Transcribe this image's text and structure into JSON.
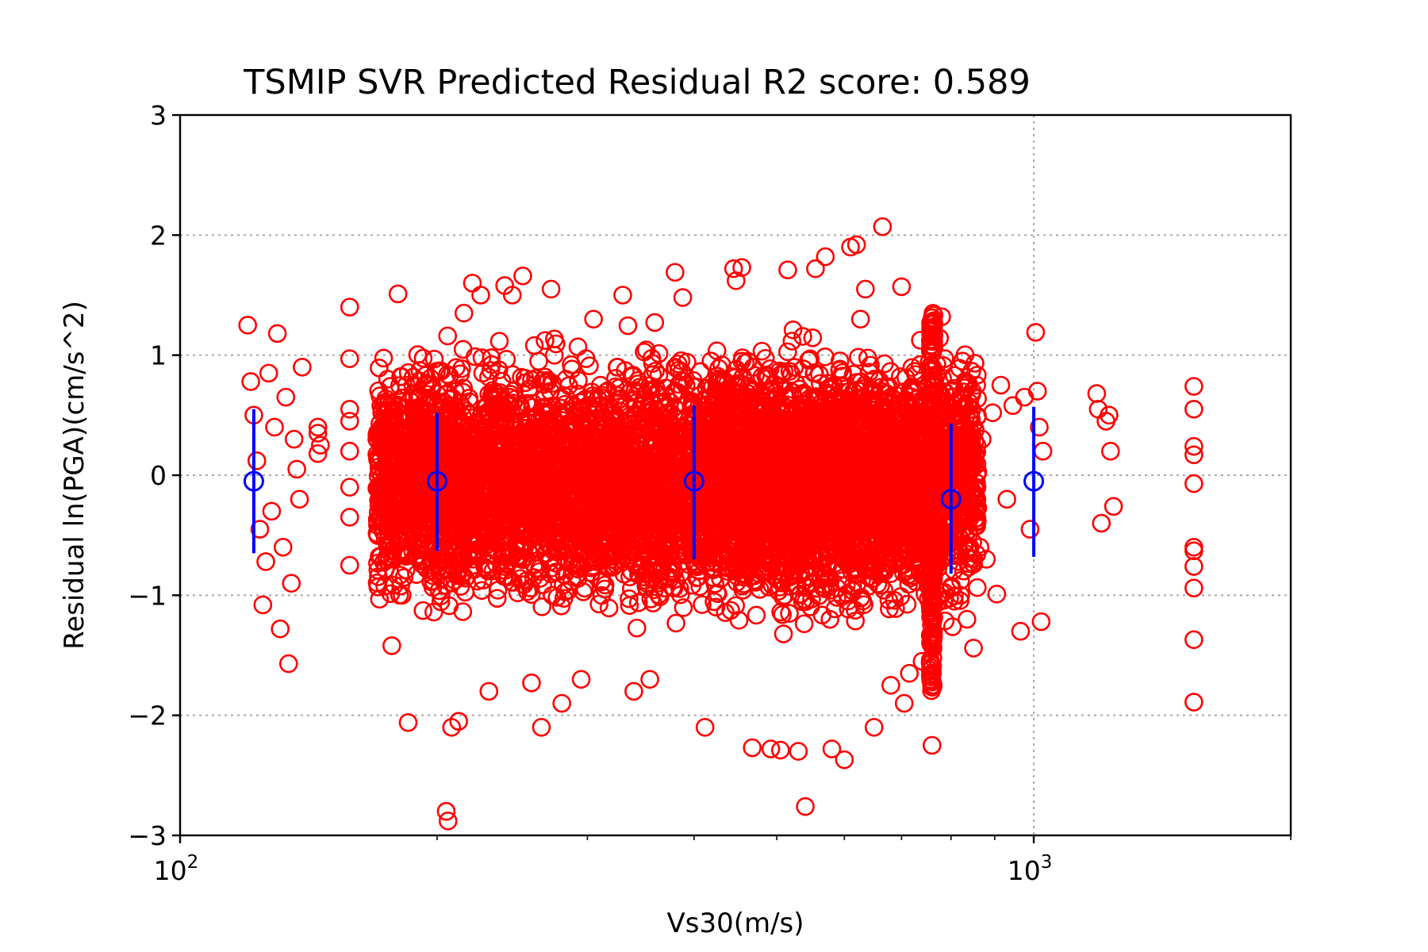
{
  "chart_data": {
    "type": "scatter",
    "title": "TSMIP SVR Predicted Residual R2 score: 0.589",
    "xlabel": "Vs30(m/s)",
    "ylabel": "Residual ln(PGA)(cm/s^2)",
    "xscale": "log",
    "xlim": [
      100,
      2000
    ],
    "ylim": [
      -3,
      3
    ],
    "x_ticks": [
      {
        "value": 100,
        "base": "10",
        "exp": "2"
      },
      {
        "value": 1000,
        "base": "10",
        "exp": "3"
      }
    ],
    "y_ticks": [
      {
        "value": -3,
        "label": "−3"
      },
      {
        "value": -2,
        "label": "−2"
      },
      {
        "value": -1,
        "label": "−1"
      },
      {
        "value": 0,
        "label": "0"
      },
      {
        "value": 1,
        "label": "1"
      },
      {
        "value": 2,
        "label": "2"
      },
      {
        "value": 3,
        "label": "3"
      }
    ],
    "grid": true,
    "colors": {
      "points": "#ff0000",
      "summary": "#0000ff"
    },
    "series": [
      {
        "marker": "open-circle",
        "color": "#ff0000",
        "points": [
          [
            120,
            1.25
          ],
          [
            121,
            0.78
          ],
          [
            122,
            0.5
          ],
          [
            123,
            0.12
          ],
          [
            124,
            -0.45
          ],
          [
            125,
            -1.08
          ],
          [
            126,
            -0.72
          ],
          [
            127,
            0.85
          ],
          [
            128,
            -0.3
          ],
          [
            129,
            0.4
          ],
          [
            130,
            1.18
          ],
          [
            131,
            -1.28
          ],
          [
            132,
            -0.6
          ],
          [
            133,
            0.65
          ],
          [
            134,
            -1.57
          ],
          [
            135,
            -0.9
          ],
          [
            136,
            0.3
          ],
          [
            137,
            0.05
          ],
          [
            138,
            -0.2
          ],
          [
            139,
            0.9
          ],
          [
            145,
            0.35
          ],
          [
            145,
            0.18
          ],
          [
            145,
            0.4
          ],
          [
            146,
            0.25
          ],
          [
            158,
            1.4
          ],
          [
            158,
            0.97
          ],
          [
            158,
            0.55
          ],
          [
            158,
            0.45
          ],
          [
            158,
            0.2
          ],
          [
            158,
            -0.1
          ],
          [
            158,
            -0.35
          ],
          [
            158,
            -0.75
          ],
          [
            170,
            0.3
          ],
          [
            173,
            -0.2
          ],
          [
            175,
            0.8
          ],
          [
            177,
            -1.42
          ],
          [
            180,
            1.51
          ],
          [
            182,
            -1.0
          ],
          [
            185,
            -2.06
          ],
          [
            188,
            0.5
          ],
          [
            205,
            -2.8
          ],
          [
            206,
            -2.88
          ],
          [
            208,
            -2.1
          ],
          [
            212,
            -2.05
          ],
          [
            215,
            1.35
          ],
          [
            220,
            1.6
          ],
          [
            225,
            1.5
          ],
          [
            230,
            -1.8
          ],
          [
            240,
            1.58
          ],
          [
            245,
            1.5
          ],
          [
            252,
            1.66
          ],
          [
            258,
            -1.73
          ],
          [
            265,
            -2.1
          ],
          [
            272,
            1.55
          ],
          [
            280,
            -1.9
          ],
          [
            295,
            -1.7
          ],
          [
            305,
            1.3
          ],
          [
            330,
            1.5
          ],
          [
            340,
            -1.8
          ],
          [
            355,
            -1.7
          ],
          [
            380,
            1.69
          ],
          [
            388,
            1.48
          ],
          [
            412,
            -2.1
          ],
          [
            445,
            1.72
          ],
          [
            448,
            1.62
          ],
          [
            455,
            1.73
          ],
          [
            468,
            -2.27
          ],
          [
            492,
            -2.28
          ],
          [
            505,
            -2.29
          ],
          [
            515,
            1.71
          ],
          [
            530,
            -2.3
          ],
          [
            540,
            -2.76
          ],
          [
            555,
            1.72
          ],
          [
            570,
            1.82
          ],
          [
            580,
            -2.28
          ],
          [
            600,
            -2.37
          ],
          [
            610,
            1.9
          ],
          [
            620,
            1.92
          ],
          [
            635,
            1.55
          ],
          [
            650,
            -2.1
          ],
          [
            665,
            2.07
          ],
          [
            680,
            -1.75
          ],
          [
            700,
            1.57
          ],
          [
            705,
            -1.9
          ],
          [
            715,
            -1.65
          ],
          [
            740,
            -1.55
          ],
          [
            760,
            -2.25
          ],
          [
            780,
            1.32
          ],
          [
            825,
            0.95
          ],
          [
            835,
            -1.2
          ],
          [
            850,
            -1.44
          ],
          [
            865,
            -0.6
          ],
          [
            870,
            0.3
          ],
          [
            880,
            -0.7
          ],
          [
            895,
            0.52
          ],
          [
            905,
            -0.99
          ],
          [
            915,
            0.75
          ],
          [
            930,
            -0.2
          ],
          [
            945,
            0.58
          ],
          [
            965,
            -1.3
          ],
          [
            975,
            0.65
          ],
          [
            990,
            -0.45
          ],
          [
            1005,
            1.19
          ],
          [
            1010,
            0.7
          ],
          [
            1015,
            0.4
          ],
          [
            1020,
            -1.22
          ],
          [
            1025,
            0.2
          ],
          [
            1185,
            0.68
          ],
          [
            1190,
            0.55
          ],
          [
            1200,
            -0.4
          ],
          [
            1215,
            0.45
          ],
          [
            1225,
            0.5
          ],
          [
            1230,
            0.2
          ],
          [
            1240,
            -0.26
          ],
          [
            1540,
            0.74
          ],
          [
            1540,
            0.55
          ],
          [
            1540,
            0.24
          ],
          [
            1540,
            0.17
          ],
          [
            1540,
            -0.07
          ],
          [
            1540,
            -0.6
          ],
          [
            1540,
            -0.63
          ],
          [
            1540,
            -0.76
          ],
          [
            1540,
            -0.94
          ],
          [
            1540,
            -1.37
          ],
          [
            1540,
            -1.89
          ]
        ]
      },
      {
        "marker": "open-circle-errorbar",
        "color": "#0000ff",
        "points": [
          {
            "x": 122,
            "y": -0.05,
            "lo": -0.65,
            "hi": 0.55
          },
          {
            "x": 200,
            "y": -0.05,
            "lo": -0.63,
            "hi": 0.52
          },
          {
            "x": 400,
            "y": -0.05,
            "lo": -0.7,
            "hi": 0.58
          },
          {
            "x": 800,
            "y": -0.2,
            "lo": -0.82,
            "hi": 0.43
          },
          {
            "x": 1000,
            "y": -0.05,
            "lo": -0.68,
            "hi": 0.57
          }
        ]
      }
    ]
  }
}
